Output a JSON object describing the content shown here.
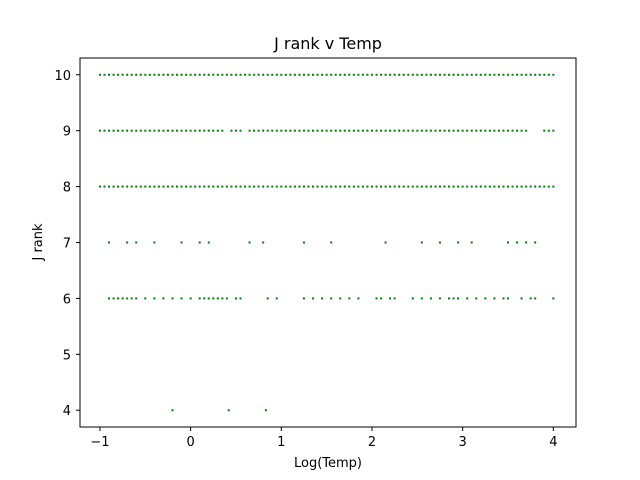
{
  "chart_data": {
    "type": "scatter",
    "title": "J rank v Temp",
    "xlabel": "Log(Temp)",
    "ylabel": "J rank",
    "xlim": [
      -1.22,
      4.25
    ],
    "ylim": [
      3.7,
      10.3
    ],
    "x_ticks": [
      -1,
      0,
      1,
      2,
      3,
      4
    ],
    "x_tick_labels": [
      "−1",
      "0",
      "1",
      "2",
      "3",
      "4"
    ],
    "y_ticks": [
      4,
      5,
      6,
      7,
      8,
      9,
      10
    ],
    "y_tick_labels": [
      "4",
      "5",
      "6",
      "7",
      "8",
      "9",
      "10"
    ],
    "grid": false,
    "marker_color": "#008000",
    "series": [
      {
        "points_by_rank": [
          {
            "y": 10,
            "x": [
              -1.0,
              -0.95,
              -0.9,
              -0.85,
              -0.8,
              -0.75,
              -0.7,
              -0.65,
              -0.6,
              -0.55,
              -0.5,
              -0.45,
              -0.4,
              -0.35,
              -0.3,
              -0.25,
              -0.2,
              -0.15,
              -0.1,
              -0.05,
              0.0,
              0.05,
              0.1,
              0.15,
              0.2,
              0.25,
              0.3,
              0.35,
              0.4,
              0.45,
              0.5,
              0.55,
              0.6,
              0.65,
              0.7,
              0.75,
              0.8,
              0.85,
              0.9,
              0.95,
              1.0,
              1.05,
              1.1,
              1.15,
              1.2,
              1.25,
              1.3,
              1.35,
              1.4,
              1.45,
              1.5,
              1.55,
              1.6,
              1.65,
              1.7,
              1.75,
              1.8,
              1.85,
              1.9,
              1.95,
              2.0,
              2.05,
              2.1,
              2.15,
              2.2,
              2.25,
              2.3,
              2.35,
              2.4,
              2.45,
              2.5,
              2.55,
              2.6,
              2.65,
              2.7,
              2.75,
              2.8,
              2.85,
              2.9,
              2.95,
              3.0,
              3.05,
              3.1,
              3.15,
              3.2,
              3.25,
              3.3,
              3.35,
              3.4,
              3.45,
              3.5,
              3.55,
              3.6,
              3.65,
              3.7,
              3.75,
              3.8,
              3.85,
              3.9,
              3.95,
              4.0
            ]
          },
          {
            "y": 9,
            "x": [
              -1.0,
              -0.95,
              -0.9,
              -0.85,
              -0.8,
              -0.75,
              -0.7,
              -0.65,
              -0.6,
              -0.55,
              -0.5,
              -0.45,
              -0.4,
              -0.35,
              -0.3,
              -0.25,
              -0.2,
              -0.15,
              -0.1,
              -0.05,
              0.0,
              0.05,
              0.1,
              0.15,
              0.2,
              0.25,
              0.3,
              0.35,
              0.45,
              0.5,
              0.55,
              0.65,
              0.7,
              0.75,
              0.8,
              0.85,
              0.9,
              0.95,
              1.0,
              1.05,
              1.1,
              1.15,
              1.2,
              1.25,
              1.3,
              1.35,
              1.4,
              1.45,
              1.5,
              1.55,
              1.6,
              1.65,
              1.7,
              1.75,
              1.8,
              1.85,
              1.9,
              1.95,
              2.0,
              2.05,
              2.1,
              2.15,
              2.2,
              2.25,
              2.3,
              2.35,
              2.4,
              2.45,
              2.5,
              2.55,
              2.6,
              2.65,
              2.7,
              2.75,
              2.8,
              2.85,
              2.9,
              2.95,
              3.0,
              3.05,
              3.1,
              3.15,
              3.2,
              3.25,
              3.3,
              3.35,
              3.4,
              3.45,
              3.5,
              3.55,
              3.6,
              3.65,
              3.7,
              3.9,
              3.95,
              4.0
            ]
          },
          {
            "y": 8,
            "x": [
              -1.0,
              -0.95,
              -0.9,
              -0.85,
              -0.8,
              -0.75,
              -0.7,
              -0.65,
              -0.6,
              -0.55,
              -0.5,
              -0.45,
              -0.4,
              -0.35,
              -0.3,
              -0.25,
              -0.2,
              -0.15,
              -0.1,
              -0.05,
              0.0,
              0.05,
              0.1,
              0.15,
              0.2,
              0.25,
              0.3,
              0.35,
              0.4,
              0.45,
              0.5,
              0.55,
              0.6,
              0.65,
              0.7,
              0.75,
              0.8,
              0.85,
              0.9,
              0.95,
              1.0,
              1.05,
              1.1,
              1.15,
              1.2,
              1.25,
              1.3,
              1.35,
              1.4,
              1.45,
              1.5,
              1.55,
              1.6,
              1.65,
              1.7,
              1.75,
              1.8,
              1.85,
              1.9,
              1.95,
              2.0,
              2.05,
              2.1,
              2.15,
              2.2,
              2.25,
              2.3,
              2.35,
              2.4,
              2.45,
              2.5,
              2.55,
              2.6,
              2.65,
              2.7,
              2.75,
              2.8,
              2.85,
              2.9,
              2.95,
              3.0,
              3.05,
              3.1,
              3.15,
              3.2,
              3.25,
              3.3,
              3.35,
              3.4,
              3.45,
              3.5,
              3.55,
              3.6,
              3.65,
              3.7,
              3.75,
              3.8,
              3.85,
              3.9,
              3.95,
              4.0
            ]
          },
          {
            "y": 7,
            "x": [
              -0.9,
              -0.7,
              -0.6,
              -0.4,
              -0.1,
              0.1,
              0.2,
              0.65,
              0.8,
              1.25,
              1.55,
              2.15,
              2.55,
              2.75,
              2.95,
              3.1,
              3.5,
              3.6,
              3.7,
              3.8
            ]
          },
          {
            "y": 6,
            "x": [
              -0.9,
              -0.85,
              -0.8,
              -0.75,
              -0.7,
              -0.65,
              -0.6,
              -0.5,
              -0.4,
              -0.3,
              -0.2,
              -0.1,
              0.0,
              0.1,
              0.15,
              0.2,
              0.25,
              0.3,
              0.35,
              0.4,
              0.5,
              0.55,
              0.85,
              0.95,
              1.25,
              1.35,
              1.45,
              1.55,
              1.65,
              1.75,
              1.85,
              2.05,
              2.1,
              2.2,
              2.25,
              2.45,
              2.55,
              2.65,
              2.75,
              2.85,
              2.9,
              2.95,
              3.05,
              3.15,
              3.25,
              3.35,
              3.45,
              3.5,
              3.65,
              3.75,
              3.8,
              4.0
            ]
          },
          {
            "y": 4,
            "x": [
              -0.2,
              0.42,
              0.83
            ]
          }
        ]
      }
    ]
  }
}
